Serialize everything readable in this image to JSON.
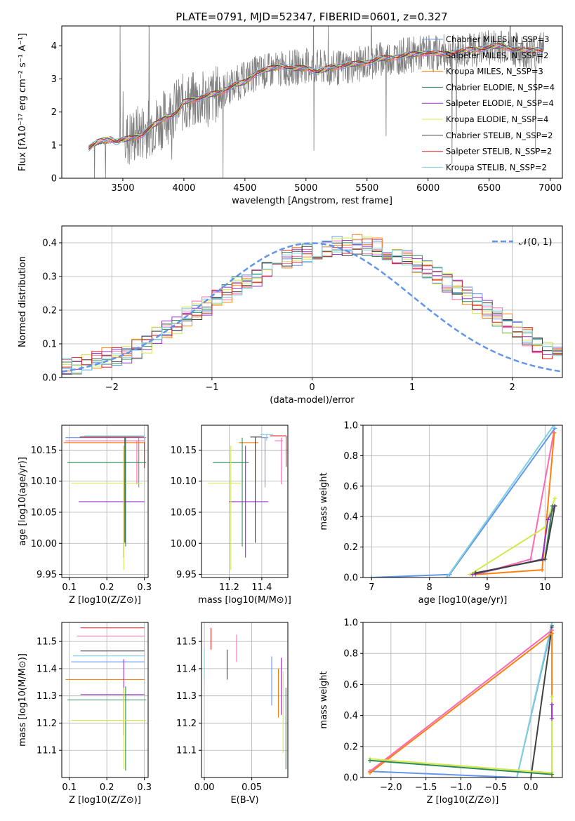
{
  "figure_title": "PLATE=0791, MJD=52347, FIBERID=0601, z=0.327",
  "chart_data": [
    {
      "id": "spectrum",
      "type": "line",
      "title": "PLATE=0791, MJD=52347, FIBERID=0601, z=0.327",
      "xlabel": "wavelength [Angstrom, rest frame]",
      "ylabel": "Flux [fλ10⁻¹⁷ erg cm⁻² s⁻¹ A⁻¹]",
      "xlim": [
        3000,
        7100
      ],
      "ylim": [
        0,
        4.6
      ],
      "xticks": [
        3500,
        4000,
        4500,
        5000,
        5500,
        6000,
        6500,
        7000
      ],
      "yticks": [
        0,
        1,
        2,
        3,
        4
      ],
      "grid": false,
      "legend_position": "top-right",
      "data_series": {
        "name": "data",
        "color": "#808080",
        "x": [
          3220,
          3400,
          3550,
          3800,
          4000,
          4200,
          4400,
          4600,
          4800,
          5000,
          5200,
          5400,
          5600,
          5800,
          6000,
          6200,
          6400,
          6600,
          6800,
          6950
        ],
        "y": [
          1.0,
          1.1,
          1.2,
          1.7,
          2.3,
          2.4,
          2.8,
          3.2,
          3.3,
          3.4,
          3.3,
          3.4,
          3.6,
          3.7,
          3.8,
          3.8,
          3.9,
          4.0,
          3.8,
          3.9
        ]
      },
      "model_series": [
        {
          "name": "Chabrier MILES, N_SSP=3",
          "color": "#6495ed"
        },
        {
          "name": "Salpeter MILES, N_SSP=2",
          "color": "#ff69b4"
        },
        {
          "name": "Kroupa MILES, N_SSP=3",
          "color": "#ff7f0e"
        },
        {
          "name": "Chabrier ELODIE, N_SSP=4",
          "color": "#2e8b57"
        },
        {
          "name": "Salpeter ELODIE, N_SSP=4",
          "color": "#9932cc"
        },
        {
          "name": "Kroupa ELODIE, N_SSP=4",
          "color": "#d4e84a"
        },
        {
          "name": "Chabrier STELIB, N_SSP=2",
          "color": "#404040"
        },
        {
          "name": "Salpeter STELIB, N_SSP=2",
          "color": "#d62728"
        },
        {
          "name": "Kroupa STELIB, N_SSP=2",
          "color": "#80d0e0"
        }
      ],
      "model_curve": {
        "x": [
          3220,
          3260,
          3300,
          3350,
          3400,
          3450,
          3500,
          3550,
          3600,
          3650,
          3700,
          3750,
          3800,
          3850,
          3900,
          3950,
          4000,
          4100,
          4200,
          4300,
          4400,
          4500,
          4600,
          4700,
          4800,
          4900,
          5000,
          5100,
          5200,
          5300,
          5400,
          5500,
          5600,
          5700,
          5800,
          5900,
          6000,
          6100,
          6200,
          6300,
          6400,
          6500,
          6600,
          6700,
          6800,
          6900,
          6950
        ],
        "y": [
          0.9,
          1.0,
          1.1,
          1.15,
          1.2,
          1.1,
          1.15,
          1.2,
          1.25,
          1.3,
          1.45,
          1.6,
          1.7,
          1.85,
          1.9,
          2.0,
          2.3,
          2.4,
          2.5,
          2.6,
          2.8,
          2.9,
          3.2,
          3.3,
          3.4,
          3.3,
          3.35,
          3.2,
          3.35,
          3.4,
          3.45,
          3.5,
          3.6,
          3.65,
          3.7,
          3.75,
          3.8,
          3.75,
          3.8,
          3.85,
          3.9,
          3.95,
          4.0,
          3.9,
          3.85,
          3.9,
          3.85
        ]
      }
    },
    {
      "id": "residuals",
      "type": "line",
      "xlabel": "(data-model)/error",
      "ylabel": "Normed distribution",
      "xlim": [
        -2.5,
        2.5
      ],
      "ylim": [
        0,
        0.45
      ],
      "xticks": [
        -2,
        -1,
        0,
        1,
        2
      ],
      "yticks": [
        0.0,
        0.1,
        0.2,
        0.3,
        0.4
      ],
      "grid": true,
      "legend_position": "top-right",
      "reference_curve": {
        "name": "𝒩(0, 1)",
        "color": "#6495ed",
        "mean": 0,
        "sigma": 1
      },
      "histogram": {
        "bin_width": 0.1,
        "bin_start": -2.5,
        "base_values": [
          0.03,
          0.03,
          0.04,
          0.05,
          0.06,
          0.065,
          0.07,
          0.085,
          0.1,
          0.12,
          0.14,
          0.16,
          0.18,
          0.2,
          0.21,
          0.23,
          0.25,
          0.27,
          0.29,
          0.3,
          0.32,
          0.34,
          0.35,
          0.36,
          0.37,
          0.38,
          0.385,
          0.39,
          0.39,
          0.395,
          0.39,
          0.385,
          0.37,
          0.36,
          0.35,
          0.34,
          0.32,
          0.3,
          0.28,
          0.26,
          0.24,
          0.22,
          0.2,
          0.18,
          0.16,
          0.14,
          0.12,
          0.1,
          0.085,
          0.07
        ],
        "series_colors": [
          "#6495ed",
          "#ff69b4",
          "#ff7f0e",
          "#2e8b57",
          "#9932cc",
          "#d4e84a",
          "#404040",
          "#d62728",
          "#80d0e0"
        ]
      }
    },
    {
      "id": "age-vs-Z",
      "type": "scatter",
      "xlabel": "Z [log10(Z/Z⊙)]",
      "ylabel": "age [log10(age/yr)]",
      "xlim": [
        0.08,
        0.31
      ],
      "ylim": [
        9.945,
        10.19
      ],
      "xticks": [
        0.1,
        0.2,
        0.3
      ],
      "yticks": [
        9.95,
        10.0,
        10.05,
        10.1,
        10.15
      ],
      "grid": true,
      "points": [
        {
          "color": "#6495ed",
          "x": 0.285,
          "y": 10.17,
          "xerr": [
            0.195,
            0.02
          ],
          "yerr": [
            0.08,
            0.0
          ]
        },
        {
          "color": "#ff69b4",
          "x": 0.28,
          "y": 10.165,
          "xerr": [
            0.19,
            0.02
          ],
          "yerr": [
            0.07,
            0.0
          ]
        },
        {
          "color": "#ff7f0e",
          "x": 0.285,
          "y": 10.162,
          "xerr": [
            0.2,
            0.015
          ],
          "yerr": [
            0.06,
            0.005
          ]
        },
        {
          "color": "#2e8b57",
          "x": 0.25,
          "y": 10.13,
          "xerr": [
            0.155,
            0.055
          ],
          "yerr": [
            0.135,
            0.04
          ]
        },
        {
          "color": "#9932cc",
          "x": 0.245,
          "y": 10.067,
          "xerr": [
            0.12,
            0.055
          ],
          "yerr": [
            0.09,
            0.09
          ]
        },
        {
          "color": "#d4e84a",
          "x": 0.245,
          "y": 10.097,
          "xerr": [
            0.14,
            0.05
          ],
          "yerr": [
            0.14,
            0.06
          ]
        },
        {
          "color": "#404040",
          "x": 0.248,
          "y": 10.171,
          "xerr": [
            0.12,
            0.04
          ],
          "yerr": [
            0.17,
            0.0
          ]
        },
        {
          "color": "#d62728",
          "x": 0.3,
          "y": 10.171,
          "xerr": [
            0.17,
            0.0
          ],
          "yerr": [
            0.05,
            0.0
          ]
        },
        {
          "color": "#80d0e0",
          "x": 0.3,
          "y": 10.173,
          "xerr": [
            0.16,
            0.0
          ],
          "yerr": [
            0.01,
            0.0
          ]
        }
      ]
    },
    {
      "id": "age-vs-mass",
      "type": "scatter",
      "xlabel": "mass [log10(M/M⊙)]",
      "ylabel": "",
      "xlim": [
        11.03,
        11.56
      ],
      "ylim": [
        9.945,
        10.19
      ],
      "xticks": [
        11.2,
        11.4
      ],
      "yticks": [
        9.95,
        10.0,
        10.05,
        10.1,
        10.15
      ],
      "grid": true,
      "points": [
        {
          "color": "#6495ed",
          "x": 11.42,
          "y": 10.17,
          "xerr": [
            0.02,
            0.02
          ],
          "yerr": [
            0.08,
            0.0
          ]
        },
        {
          "color": "#ff69b4",
          "x": 11.52,
          "y": 10.165,
          "xerr": [
            0.04,
            0.01
          ],
          "yerr": [
            0.07,
            0.005
          ]
        },
        {
          "color": "#ff7f0e",
          "x": 11.36,
          "y": 10.162,
          "xerr": [
            0.1,
            0.02
          ],
          "yerr": [
            0.06,
            0.005
          ]
        },
        {
          "color": "#2e8b57",
          "x": 11.28,
          "y": 10.13,
          "xerr": [
            0.18,
            0.04
          ],
          "yerr": [
            0.135,
            0.04
          ]
        },
        {
          "color": "#9932cc",
          "x": 11.3,
          "y": 10.067,
          "xerr": [
            0.1,
            0.14
          ],
          "yerr": [
            0.09,
            0.09
          ]
        },
        {
          "color": "#d4e84a",
          "x": 11.21,
          "y": 10.097,
          "xerr": [
            0.14,
            0.06
          ],
          "yerr": [
            0.14,
            0.06
          ]
        },
        {
          "color": "#404040",
          "x": 11.36,
          "y": 10.171,
          "xerr": [
            0.03,
            0.04
          ],
          "yerr": [
            0.17,
            0.0
          ]
        },
        {
          "color": "#d62728",
          "x": 11.55,
          "y": 10.173,
          "xerr": [
            0.1,
            0.0
          ],
          "yerr": [
            0.05,
            0.0
          ]
        },
        {
          "color": "#80d0e0",
          "x": 11.43,
          "y": 10.175,
          "xerr": [
            0.04,
            0.04
          ],
          "yerr": [
            0.01,
            0.0
          ]
        }
      ]
    },
    {
      "id": "massweight-vs-age",
      "type": "line",
      "xlabel": "age [log10(age/yr)]",
      "ylabel": "mass weight",
      "xlim": [
        6.85,
        10.3
      ],
      "ylim": [
        0,
        1.0
      ],
      "xticks": [
        7,
        8,
        9,
        10
      ],
      "yticks": [
        0.0,
        0.2,
        0.4,
        0.6,
        0.8,
        1.0
      ],
      "grid": true,
      "series": [
        {
          "color": "#6495ed",
          "x": [
            7.0,
            8.35,
            10.17
          ],
          "y": [
            0.0,
            0.02,
            0.98
          ]
        },
        {
          "color": "#80d0e0",
          "x": [
            8.3,
            10.15
          ],
          "y": [
            0.0,
            1.0
          ]
        },
        {
          "color": "#ff69b4",
          "x": [
            8.8,
            9.75,
            10.15
          ],
          "y": [
            0.02,
            0.12,
            0.95
          ]
        },
        {
          "color": "#ff7f0e",
          "x": [
            8.8,
            9.95,
            10.16
          ],
          "y": [
            0.02,
            0.05,
            0.95
          ]
        },
        {
          "color": "#d4e84a",
          "x": [
            8.7,
            10.0,
            10.17
          ],
          "y": [
            0.02,
            0.33,
            0.52
          ]
        },
        {
          "color": "#9932cc",
          "x": [
            8.75,
            9.95,
            10.05,
            10.17
          ],
          "y": [
            0.02,
            0.12,
            0.38,
            0.47
          ]
        },
        {
          "color": "#2e8b57",
          "x": [
            8.8,
            10.0,
            10.13
          ],
          "y": [
            0.03,
            0.12,
            0.47
          ]
        },
        {
          "color": "#404040",
          "x": [
            8.8,
            10.0,
            10.17
          ],
          "y": [
            0.03,
            0.12,
            0.47
          ]
        }
      ]
    },
    {
      "id": "mass-vs-Z",
      "type": "scatter",
      "xlabel": "Z [log10(Z/Z⊙)]",
      "ylabel": "mass [log10(M/M⊙)]",
      "xlim": [
        0.08,
        0.31
      ],
      "ylim": [
        11.0,
        11.57
      ],
      "xticks": [
        0.1,
        0.2,
        0.3
      ],
      "yticks": [
        11.1,
        11.2,
        11.3,
        11.4,
        11.5
      ],
      "grid": true,
      "points": [
        {
          "color": "#d62728",
          "x": 0.3,
          "y": 11.55,
          "xerr": [
            0.17,
            0.0
          ],
          "yerr": [
            0.0,
            0.0
          ]
        },
        {
          "color": "#ff69b4",
          "x": 0.3,
          "y": 11.52,
          "xerr": [
            0.18,
            0.0
          ],
          "yerr": [
            0.0,
            0.0
          ]
        },
        {
          "color": "#404040",
          "x": 0.3,
          "y": 11.465,
          "xerr": [
            0.17,
            0.0
          ],
          "yerr": [
            0.0,
            0.0
          ]
        },
        {
          "color": "#80d0e0",
          "x": 0.3,
          "y": 11.447,
          "xerr": [
            0.19,
            0.0
          ],
          "yerr": [
            0.0,
            0.0
          ]
        },
        {
          "color": "#6495ed",
          "x": 0.3,
          "y": 11.425,
          "xerr": [
            0.195,
            0.0
          ],
          "yerr": [
            0.0,
            0.0
          ]
        },
        {
          "color": "#ff7f0e",
          "x": 0.3,
          "y": 11.36,
          "xerr": [
            0.21,
            0.0
          ],
          "yerr": [
            0.0,
            0.0
          ]
        },
        {
          "color": "#9932cc",
          "x": 0.245,
          "y": 11.305,
          "xerr": [
            0.115,
            0.055
          ],
          "yerr": [
            0.15,
            0.13
          ]
        },
        {
          "color": "#2e8b57",
          "x": 0.25,
          "y": 11.285,
          "xerr": [
            0.155,
            0.055
          ],
          "yerr": [
            0.26,
            0.05
          ]
        },
        {
          "color": "#d4e84a",
          "x": 0.245,
          "y": 11.21,
          "xerr": [
            0.14,
            0.06
          ],
          "yerr": [
            0.18,
            0.12
          ]
        }
      ]
    },
    {
      "id": "mass-vs-EBV",
      "type": "scatter",
      "xlabel": "E(B-V)",
      "ylabel": "",
      "xlim": [
        -0.003,
        0.088
      ],
      "ylim": [
        11.0,
        11.57
      ],
      "xticks": [
        0.0,
        0.05
      ],
      "yticks": [
        11.1,
        11.2,
        11.3,
        11.4,
        11.5
      ],
      "grid": true,
      "points": [
        {
          "color": "#d62728",
          "x": 0.007,
          "y": 11.51,
          "yerr": [
            0.04,
            0.04
          ]
        },
        {
          "color": "#404040",
          "x": 0.024,
          "y": 11.415,
          "yerr": [
            0.055,
            0.055
          ]
        },
        {
          "color": "#ff69b4",
          "x": 0.034,
          "y": 11.475,
          "yerr": [
            0.05,
            0.05
          ]
        },
        {
          "color": "#80d0e0",
          "x": 0.0,
          "y": 11.42,
          "yerr": [
            0.06,
            0.05
          ]
        },
        {
          "color": "#6495ed",
          "x": 0.071,
          "y": 11.345,
          "yerr": [
            0.08,
            0.1
          ]
        },
        {
          "color": "#ff7f0e",
          "x": 0.078,
          "y": 11.32,
          "yerr": [
            0.1,
            0.08
          ]
        },
        {
          "color": "#9932cc",
          "x": 0.081,
          "y": 11.34,
          "yerr": [
            0.11,
            0.1
          ]
        },
        {
          "color": "#2e8b57",
          "x": 0.086,
          "y": 11.25,
          "yerr": [
            0.22,
            0.08
          ]
        },
        {
          "color": "#d4e84a",
          "x": 0.083,
          "y": 11.23,
          "yerr": [
            0.14,
            0.16
          ]
        }
      ]
    },
    {
      "id": "massweight-vs-Z",
      "type": "line",
      "xlabel": "Z [log10(Z/Z⊙)]",
      "ylabel": "mass weight",
      "xlim": [
        -2.4,
        0.45
      ],
      "ylim": [
        0,
        1.0
      ],
      "xticks": [
        -2.0,
        -1.5,
        -1.0,
        -0.5,
        0.0
      ],
      "yticks": [
        0.0,
        0.2,
        0.4,
        0.6,
        0.8,
        1.0
      ],
      "grid": true,
      "series": [
        {
          "color": "#6495ed",
          "x": [
            -2.3,
            -0.2,
            0.3
          ],
          "y": [
            0.04,
            0.0,
            0.98
          ]
        },
        {
          "color": "#80d0e0",
          "x": [
            -0.2,
            0.3
          ],
          "y": [
            0.0,
            1.0
          ]
        },
        {
          "color": "#404040",
          "x": [
            0.0,
            0.3
          ],
          "y": [
            0.0,
            0.97
          ]
        },
        {
          "color": "#ff69b4",
          "x": [
            -2.3,
            0.3
          ],
          "y": [
            0.04,
            0.95
          ]
        },
        {
          "color": "#ff7f0e",
          "x": [
            -2.3,
            0.3,
            0.3
          ],
          "y": [
            0.03,
            0.93,
            0.0
          ]
        },
        {
          "color": "#d4e84a",
          "x": [
            -2.3,
            0.3,
            0.3
          ],
          "y": [
            0.12,
            0.03,
            0.52
          ]
        },
        {
          "color": "#2e8b57",
          "x": [
            -2.3,
            0.3
          ],
          "y": [
            0.11,
            0.02
          ]
        },
        {
          "color": "#9932cc",
          "x": [
            0.3,
            0.3
          ],
          "y": [
            0.38,
            0.47
          ]
        }
      ]
    }
  ]
}
